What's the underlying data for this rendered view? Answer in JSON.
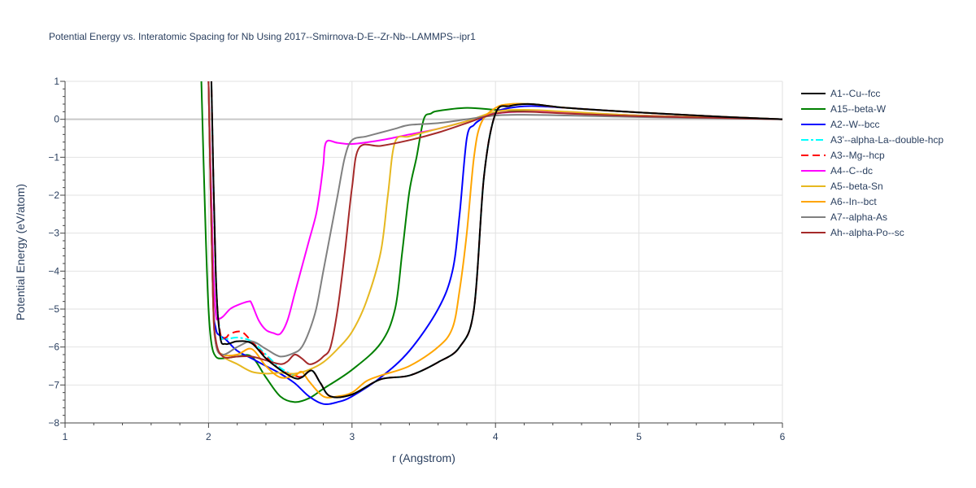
{
  "chart_data": {
    "type": "line",
    "title": "Potential Energy vs. Interatomic Spacing for Nb Using 2017--Smirnova-D-E--Zr-Nb--LAMMPS--ipr1",
    "xlabel": "r (Angstrom)",
    "ylabel": "Potential Energy (eV/atom)",
    "xlim": [
      1,
      6
    ],
    "ylim": [
      -8,
      1
    ],
    "x_ticks": [
      1,
      2,
      3,
      4,
      5,
      6
    ],
    "y_ticks": [
      1,
      0,
      -1,
      -2,
      -3,
      -4,
      -5,
      -6,
      -7,
      -8
    ],
    "x_tick_labels": [
      "1",
      "2",
      "3",
      "4",
      "5",
      "6"
    ],
    "y_tick_labels": [
      "1",
      "0",
      "−1",
      "−2",
      "−3",
      "−4",
      "−5",
      "−6",
      "−7",
      "−8"
    ],
    "grid": true,
    "legend_position": "right",
    "series": [
      {
        "name": "A1--Cu--fcc",
        "color": "#000000",
        "dash": "solid",
        "x": [
          2.02,
          2.05,
          2.08,
          2.12,
          2.2,
          2.3,
          2.4,
          2.5,
          2.6,
          2.65,
          2.72,
          2.78,
          2.85,
          3.0,
          3.2,
          3.4,
          3.6,
          3.75,
          3.85,
          3.92,
          4.0,
          4.1,
          4.25,
          4.5,
          5.0,
          5.5,
          6.0
        ],
        "y": [
          1,
          -4.0,
          -5.7,
          -5.92,
          -5.85,
          -5.9,
          -6.3,
          -6.6,
          -6.82,
          -6.8,
          -6.62,
          -6.95,
          -7.3,
          -7.25,
          -6.85,
          -6.75,
          -6.4,
          -6.0,
          -5.0,
          -1.5,
          0.15,
          0.35,
          0.4,
          0.3,
          0.18,
          0.08,
          0.0
        ]
      },
      {
        "name": "A15--beta-W",
        "color": "#008000",
        "dash": "solid",
        "x": [
          1.95,
          1.98,
          2.0,
          2.02,
          2.05,
          2.1,
          2.2,
          2.3,
          2.4,
          2.5,
          2.6,
          2.7,
          2.8,
          3.0,
          3.2,
          3.3,
          3.35,
          3.4,
          3.45,
          3.5,
          3.55,
          3.6,
          3.8,
          4.0,
          4.2,
          4.5,
          5.0,
          5.5,
          6.0
        ],
        "y": [
          1,
          -3.0,
          -5.0,
          -5.9,
          -6.25,
          -6.3,
          -6.25,
          -6.25,
          -6.8,
          -7.3,
          -7.45,
          -7.35,
          -7.1,
          -6.6,
          -5.9,
          -5.0,
          -3.5,
          -1.9,
          -1.0,
          0.0,
          0.15,
          0.22,
          0.3,
          0.25,
          0.22,
          0.18,
          0.1,
          0.05,
          0.0
        ]
      },
      {
        "name": "A2--W--bcc",
        "color": "#0000ff",
        "dash": "solid",
        "x": [
          2.0,
          2.03,
          2.05,
          2.08,
          2.12,
          2.2,
          2.3,
          2.4,
          2.5,
          2.6,
          2.7,
          2.8,
          2.9,
          3.0,
          3.2,
          3.4,
          3.6,
          3.7,
          3.75,
          3.8,
          3.85,
          3.9,
          4.0,
          4.1,
          4.25,
          4.5,
          5.0,
          5.5,
          6.0
        ],
        "y": [
          1,
          -4.5,
          -5.5,
          -5.7,
          -5.8,
          -6.1,
          -6.3,
          -6.5,
          -6.7,
          -6.95,
          -7.3,
          -7.5,
          -7.45,
          -7.3,
          -6.8,
          -6.1,
          -5.0,
          -4.0,
          -2.5,
          -0.5,
          -0.15,
          0.0,
          0.2,
          0.3,
          0.35,
          0.3,
          0.18,
          0.08,
          0.0
        ]
      },
      {
        "name": "A3'--alpha-La--double-hcp",
        "color": "#00ffff",
        "dash": "dashdot",
        "x": [
          2.02,
          2.05,
          2.08,
          2.12,
          2.2,
          2.3,
          2.4,
          2.5,
          2.6,
          2.65,
          2.72,
          2.78,
          2.85,
          3.0,
          3.2,
          3.4,
          3.6,
          3.75,
          3.85,
          3.92,
          4.0,
          4.1,
          4.25,
          4.5,
          5.0,
          5.5,
          6.0
        ],
        "y": [
          1,
          -4.0,
          -5.6,
          -5.78,
          -5.75,
          -5.85,
          -6.2,
          -6.55,
          -6.75,
          -6.78,
          -6.62,
          -6.95,
          -7.3,
          -7.25,
          -6.85,
          -6.75,
          -6.4,
          -6.0,
          -5.0,
          -1.5,
          0.15,
          0.35,
          0.4,
          0.3,
          0.18,
          0.08,
          0.0
        ]
      },
      {
        "name": "A3--Mg--hcp",
        "color": "#ff0000",
        "dash": "dash",
        "x": [
          2.02,
          2.05,
          2.08,
          2.12,
          2.15,
          2.23,
          2.3,
          2.4,
          2.5,
          2.6,
          2.65,
          2.72,
          2.78,
          2.85,
          3.0,
          3.2,
          3.4,
          3.6,
          3.75,
          3.85,
          3.92,
          4.0,
          4.1,
          4.25,
          4.5,
          5.0,
          5.5,
          6.0
        ],
        "y": [
          1,
          -4.0,
          -5.6,
          -5.75,
          -5.65,
          -5.6,
          -5.85,
          -6.25,
          -6.6,
          -6.75,
          -6.78,
          -6.62,
          -6.95,
          -7.3,
          -7.25,
          -6.85,
          -6.75,
          -6.4,
          -6.0,
          -5.0,
          -1.5,
          0.15,
          0.35,
          0.4,
          0.3,
          0.18,
          0.08,
          0.0
        ]
      },
      {
        "name": "A4--C--dc",
        "color": "#ff00ff",
        "dash": "solid",
        "x": [
          2.0,
          2.03,
          2.05,
          2.07,
          2.1,
          2.15,
          2.2,
          2.28,
          2.3,
          2.35,
          2.4,
          2.45,
          2.5,
          2.55,
          2.6,
          2.65,
          2.7,
          2.75,
          2.78,
          2.8,
          2.82,
          2.9,
          3.0,
          3.2,
          3.4,
          3.6,
          3.8,
          4.0,
          4.2,
          4.5,
          5.0,
          5.5,
          6.0
        ],
        "y": [
          1,
          -3.5,
          -5.1,
          -5.25,
          -5.2,
          -5.0,
          -4.9,
          -4.8,
          -4.85,
          -5.3,
          -5.55,
          -5.63,
          -5.65,
          -5.3,
          -4.6,
          -3.9,
          -3.2,
          -2.5,
          -1.8,
          -1.2,
          -0.6,
          -0.62,
          -0.65,
          -0.55,
          -0.4,
          -0.25,
          -0.05,
          0.15,
          0.2,
          0.18,
          0.1,
          0.05,
          0.0
        ]
      },
      {
        "name": "A5--beta-Sn",
        "color": "#e6b820",
        "dash": "solid",
        "x": [
          2.0,
          2.03,
          2.05,
          2.1,
          2.2,
          2.3,
          2.4,
          2.5,
          2.6,
          2.7,
          2.8,
          2.9,
          3.0,
          3.1,
          3.2,
          3.25,
          3.3,
          3.4,
          3.6,
          3.8,
          4.0,
          4.2,
          4.5,
          5.0,
          5.5,
          6.0
        ],
        "y": [
          1,
          -4.5,
          -5.9,
          -6.25,
          -6.45,
          -6.65,
          -6.7,
          -6.68,
          -6.7,
          -6.6,
          -6.4,
          -6.05,
          -5.6,
          -4.8,
          -3.5,
          -2.0,
          -0.6,
          -0.45,
          -0.25,
          -0.05,
          0.2,
          0.25,
          0.2,
          0.1,
          0.05,
          0.0
        ]
      },
      {
        "name": "A6--In--bct",
        "color": "#ffa500",
        "dash": "solid",
        "x": [
          2.0,
          2.03,
          2.05,
          2.1,
          2.2,
          2.3,
          2.4,
          2.5,
          2.6,
          2.65,
          2.7,
          2.8,
          2.9,
          3.0,
          3.1,
          3.2,
          3.4,
          3.6,
          3.7,
          3.75,
          3.8,
          3.85,
          3.9,
          4.0,
          4.1,
          4.25,
          4.5,
          5.0,
          5.5,
          6.0
        ],
        "y": [
          1,
          -4.5,
          -5.9,
          -6.2,
          -6.2,
          -6.05,
          -6.5,
          -6.8,
          -6.75,
          -6.65,
          -6.9,
          -7.3,
          -7.3,
          -7.2,
          -6.9,
          -6.75,
          -6.5,
          -6.0,
          -5.5,
          -4.5,
          -3.0,
          -1.0,
          -0.1,
          0.3,
          0.4,
          0.4,
          0.3,
          0.18,
          0.08,
          0.0
        ]
      },
      {
        "name": "A7--alpha-As",
        "color": "#808080",
        "dash": "solid",
        "x": [
          2.0,
          2.03,
          2.05,
          2.1,
          2.2,
          2.3,
          2.4,
          2.5,
          2.6,
          2.65,
          2.7,
          2.75,
          2.8,
          2.85,
          2.9,
          2.95,
          3.0,
          3.1,
          3.2,
          3.3,
          3.4,
          3.6,
          3.8,
          4.0,
          4.2,
          4.5,
          5.0,
          5.5,
          6.0
        ],
        "y": [
          1,
          -4.5,
          -5.9,
          -6.2,
          -6.0,
          -5.85,
          -6.05,
          -6.25,
          -6.15,
          -6.0,
          -5.6,
          -5.0,
          -4.0,
          -3.0,
          -2.0,
          -1.0,
          -0.55,
          -0.45,
          -0.35,
          -0.25,
          -0.15,
          -0.1,
          0.0,
          0.1,
          0.12,
          0.1,
          0.06,
          0.03,
          0.0
        ]
      },
      {
        "name": "Ah--alpha-Po--sc",
        "color": "#a52a2a",
        "dash": "solid",
        "x": [
          2.0,
          2.03,
          2.05,
          2.1,
          2.2,
          2.3,
          2.4,
          2.5,
          2.55,
          2.6,
          2.65,
          2.7,
          2.75,
          2.8,
          2.85,
          2.9,
          2.95,
          3.0,
          3.05,
          3.2,
          3.4,
          3.6,
          3.8,
          4.0,
          4.2,
          4.5,
          5.0,
          5.5,
          6.0
        ],
        "y": [
          1,
          -4.5,
          -5.8,
          -6.25,
          -6.25,
          -6.25,
          -6.35,
          -6.45,
          -6.38,
          -6.2,
          -6.3,
          -6.45,
          -6.4,
          -6.25,
          -6.0,
          -5.0,
          -3.5,
          -1.8,
          -0.75,
          -0.7,
          -0.55,
          -0.35,
          -0.1,
          0.15,
          0.2,
          0.15,
          0.08,
          0.04,
          0.0
        ]
      }
    ]
  }
}
